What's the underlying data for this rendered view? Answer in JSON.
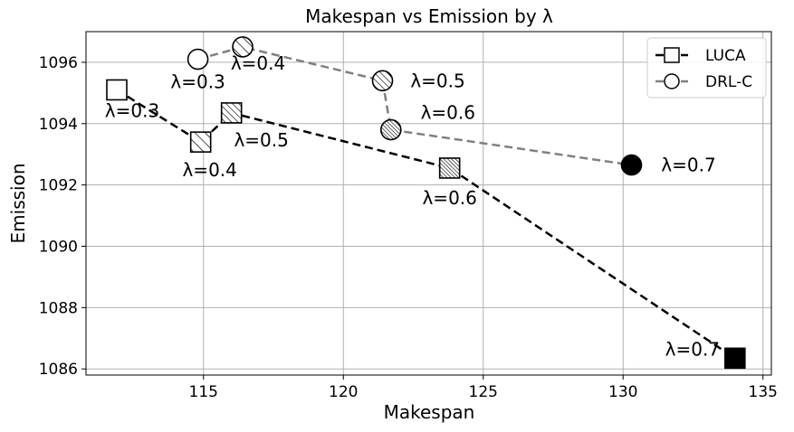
{
  "chart_data": {
    "type": "line",
    "title": "Makespan vs Emission by λ",
    "xlabel": "Makespan",
    "ylabel": "Emission",
    "xlim": [
      110.8,
      135.3
    ],
    "ylim": [
      1085.8,
      1097.0
    ],
    "xticks": [
      115,
      120,
      125,
      130,
      135
    ],
    "yticks": [
      1086,
      1088,
      1090,
      1092,
      1094,
      1096
    ],
    "grid": true,
    "legend_position": "top-right",
    "series": [
      {
        "name": "LUCA",
        "marker": "square",
        "line_color": "#000000",
        "points": [
          {
            "x": 111.9,
            "y": 1095.1,
            "lambda": "λ=0.3",
            "hatch": "none"
          },
          {
            "x": 114.9,
            "y": 1093.4,
            "lambda": "λ=0.4",
            "hatch": "single"
          },
          {
            "x": 116.0,
            "y": 1094.35,
            "lambda": "λ=0.5",
            "hatch": "double"
          },
          {
            "x": 123.8,
            "y": 1092.55,
            "lambda": "λ=0.6",
            "hatch": "dense"
          },
          {
            "x": 134.0,
            "y": 1086.35,
            "lambda": "λ=0.7",
            "hatch": "solid"
          }
        ]
      },
      {
        "name": "DRL-C",
        "marker": "circle",
        "line_color": "#808080",
        "points": [
          {
            "x": 114.8,
            "y": 1096.1,
            "lambda": "λ=0.3",
            "hatch": "none"
          },
          {
            "x": 116.4,
            "y": 1096.5,
            "lambda": "λ=0.4",
            "hatch": "single"
          },
          {
            "x": 121.4,
            "y": 1095.4,
            "lambda": "λ=0.5",
            "hatch": "double"
          },
          {
            "x": 121.7,
            "y": 1093.8,
            "lambda": "λ=0.6",
            "hatch": "dense"
          },
          {
            "x": 130.3,
            "y": 1092.65,
            "lambda": "λ=0.7",
            "hatch": "solid"
          }
        ]
      }
    ]
  }
}
